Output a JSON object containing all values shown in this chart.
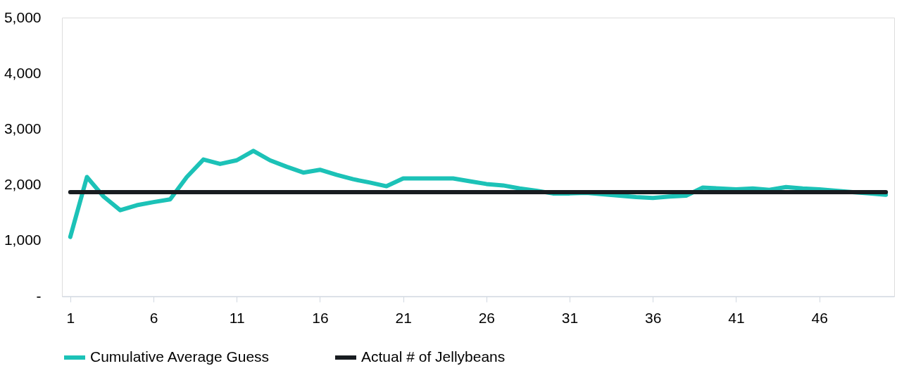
{
  "chart_data": {
    "type": "line",
    "x": [
      1,
      2,
      3,
      4,
      5,
      6,
      7,
      8,
      9,
      10,
      11,
      12,
      13,
      14,
      15,
      16,
      17,
      18,
      19,
      20,
      21,
      22,
      23,
      24,
      25,
      26,
      27,
      28,
      29,
      30,
      31,
      32,
      33,
      34,
      35,
      36,
      37,
      38,
      39,
      40,
      41,
      42,
      43,
      44,
      45,
      46,
      47,
      48,
      49,
      50
    ],
    "series": [
      {
        "name": "Cumulative Average Guess",
        "color": "#1cc2b7",
        "values": [
          1065,
          2140,
          1790,
          1545,
          1635,
          1690,
          1740,
          2140,
          2455,
          2375,
          2440,
          2610,
          2440,
          2325,
          2220,
          2270,
          2180,
          2100,
          2040,
          1975,
          2115,
          2115,
          2115,
          2115,
          2065,
          2015,
          1990,
          1935,
          1895,
          1845,
          1845,
          1855,
          1830,
          1805,
          1780,
          1765,
          1790,
          1805,
          1950,
          1935,
          1920,
          1935,
          1910,
          1960,
          1935,
          1920,
          1895,
          1870,
          1845,
          1820
        ]
      },
      {
        "name": "Actual # of Jellybeans",
        "color": "#181c20",
        "values": [
          1870,
          1870,
          1870,
          1870,
          1870,
          1870,
          1870,
          1870,
          1870,
          1870,
          1870,
          1870,
          1870,
          1870,
          1870,
          1870,
          1870,
          1870,
          1870,
          1870,
          1870,
          1870,
          1870,
          1870,
          1870,
          1870,
          1870,
          1870,
          1870,
          1870,
          1870,
          1870,
          1870,
          1870,
          1870,
          1870,
          1870,
          1870,
          1870,
          1870,
          1870,
          1870,
          1870,
          1870,
          1870,
          1870,
          1870,
          1870,
          1870,
          1870
        ]
      }
    ],
    "xlim": [
      0.5,
      50.5
    ],
    "xticks": [
      1,
      6,
      11,
      16,
      21,
      26,
      31,
      36,
      41,
      46
    ],
    "ylim": [
      0,
      5000
    ],
    "yticks": [
      {
        "value": 0,
        "label": "-"
      },
      {
        "value": 1000,
        "label": "1,000"
      },
      {
        "value": 2000,
        "label": "2,000"
      },
      {
        "value": 3000,
        "label": "3,000"
      },
      {
        "value": 4000,
        "label": "4,000"
      },
      {
        "value": 5000,
        "label": "5,000"
      }
    ],
    "grid": false,
    "legend": "bottom",
    "marker": "none",
    "line_style": "solid"
  }
}
